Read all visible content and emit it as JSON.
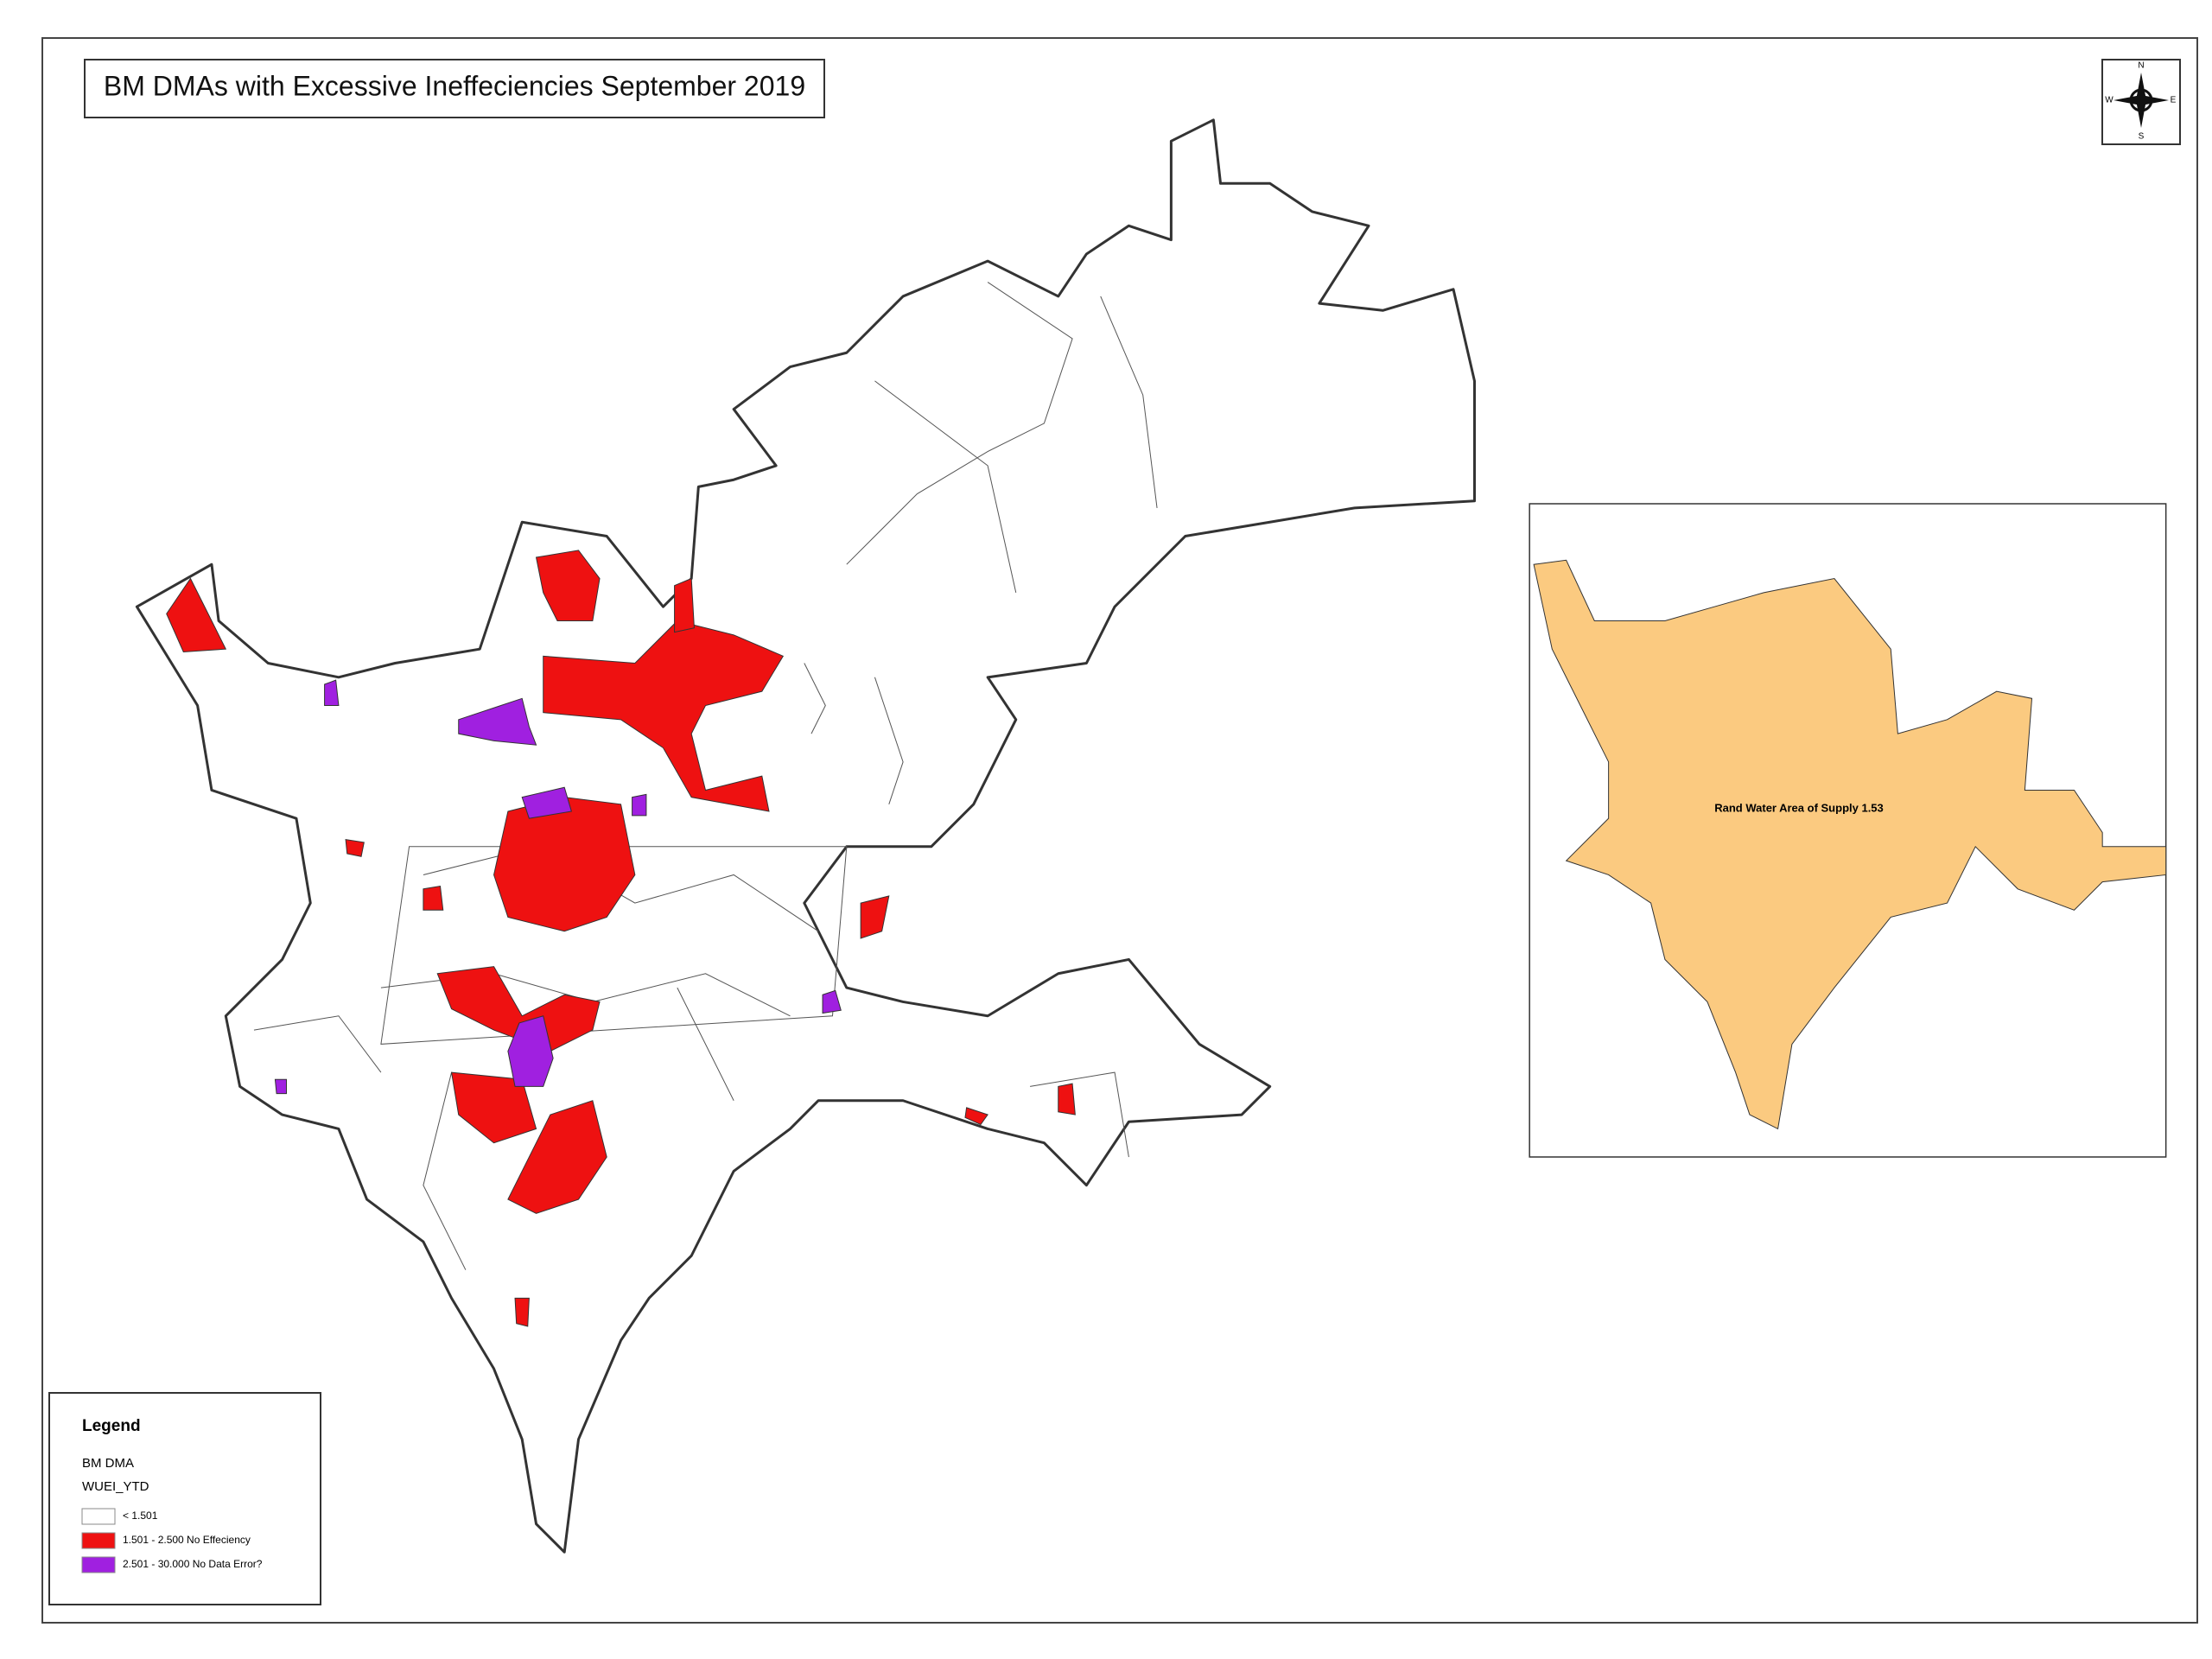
{
  "header": {
    "title": "BM DMAs with Excessive Ineffeciencies September 2019"
  },
  "compass": {
    "north": "N",
    "south": "S",
    "east": "E",
    "west": "W"
  },
  "legend": {
    "title": "Legend",
    "layer": "BM DMA",
    "field": "WUEI_YTD",
    "items": [
      {
        "label": "< 1.501",
        "color": "#ffffff"
      },
      {
        "label": "1.501 - 2.500  No Effeciency",
        "color": "#ee1111"
      },
      {
        "label": "2.501 - 30.000 No Data Error?",
        "color": "#a020e0"
      }
    ]
  },
  "inset": {
    "label": "Rand Water Area of Supply 1.53",
    "color": "#fbca80"
  }
}
